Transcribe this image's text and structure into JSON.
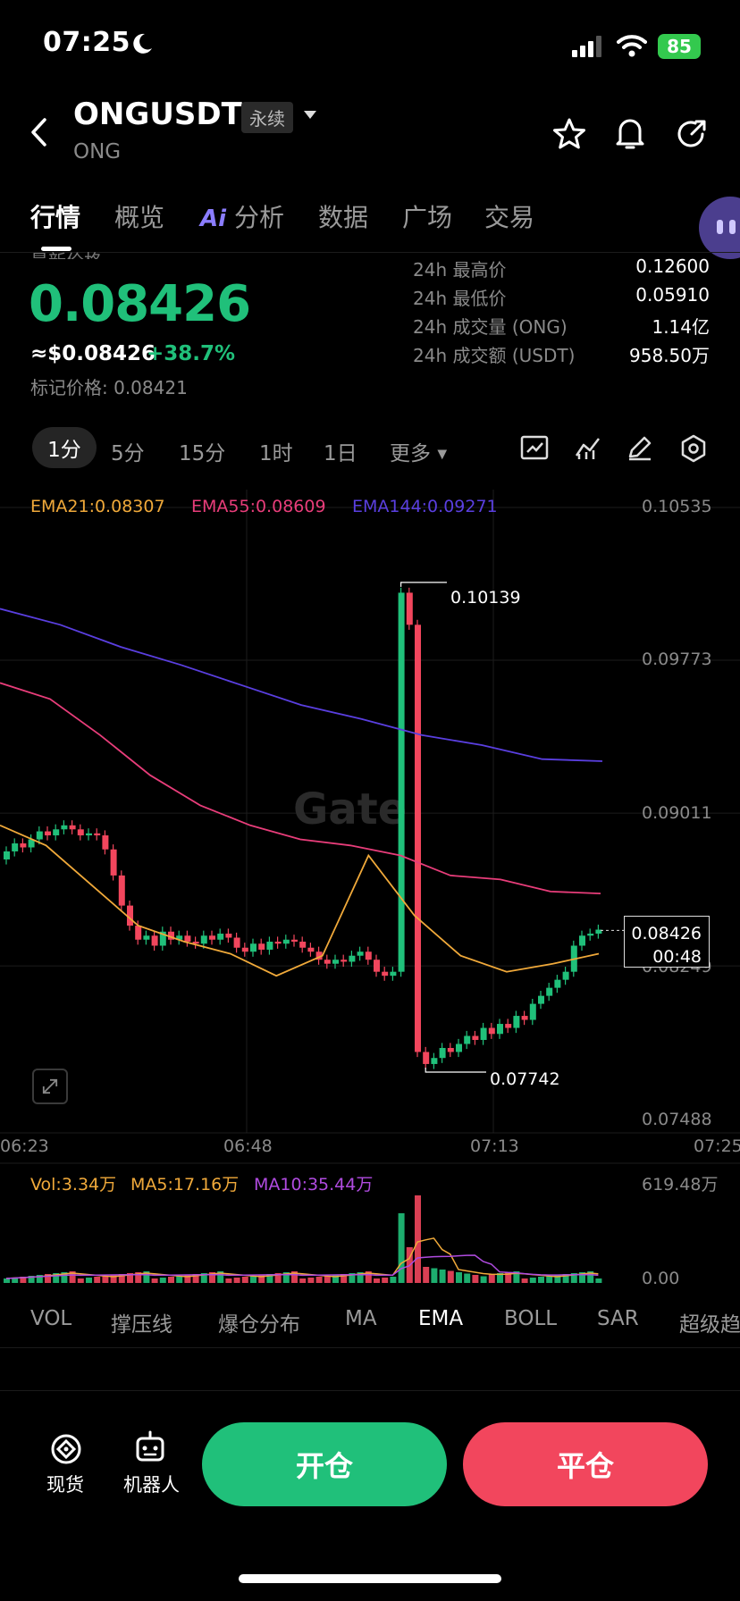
{
  "status_bar": {
    "time": "07:25",
    "battery": "85"
  },
  "header": {
    "pair": "ONGUSDT",
    "contract_tag": "永续",
    "base": "ONG"
  },
  "tabs": [
    {
      "label": "行情"
    },
    {
      "label": "概览"
    },
    {
      "label": "分析",
      "badge": "Ai"
    },
    {
      "label": "数据"
    },
    {
      "label": "广场"
    },
    {
      "label": "交易"
    }
  ],
  "price": {
    "last_label": "最新价格",
    "last": "0.08426",
    "usd": "≈$0.08426",
    "change_pct": "+38.7%",
    "mark": "标记价格: 0.08421"
  },
  "stats": [
    {
      "label": "24h 最高价",
      "value": "0.12600"
    },
    {
      "label": "24h 最低价",
      "value": "0.05910"
    },
    {
      "label": "24h 成交量 (ONG)",
      "value": "1.14亿"
    },
    {
      "label": "24h 成交额 (USDT)",
      "value": "958.50万"
    }
  ],
  "intervals": [
    "1分",
    "5分",
    "15分",
    "1时",
    "1日",
    "更多"
  ],
  "chart": {
    "ema_legend": [
      {
        "label": "EMA21:0.08307",
        "color": "#f0a93a"
      },
      {
        "label": "EMA55:0.08609",
        "color": "#e83d7a"
      },
      {
        "label": "EMA144:0.09271",
        "color": "#5a3fe0"
      }
    ],
    "y_ticks": [
      "0.10535",
      "0.09773",
      "0.09011",
      "0.08249",
      "0.07488"
    ],
    "x_ticks": [
      "06:23",
      "06:48",
      "07:13",
      "07:25"
    ],
    "high_annotation": "0.10139",
    "low_annotation": "0.07742",
    "last_price": "0.08426",
    "countdown": "00:48",
    "watermark": "Gate"
  },
  "volume": {
    "legend": [
      {
        "label": "Vol:3.34万",
        "color": "#f0a93a"
      },
      {
        "label": "MA5:17.16万",
        "color": "#f0a93a"
      },
      {
        "label": "MA10:35.44万",
        "color": "#b04be0"
      }
    ],
    "max_tick": "619.48万",
    "min_tick": "0.00"
  },
  "indicators": [
    "VOL",
    "撑压线",
    "爆仓分布",
    "MA",
    "EMA",
    "BOLL",
    "SAR",
    "超级趋"
  ],
  "footer": {
    "spot": "现货",
    "bot": "机器人",
    "open": "开仓",
    "close": "平仓"
  },
  "chart_data": {
    "type": "candlestick",
    "y_range": [
      0.07488,
      0.10535
    ],
    "series": [
      {
        "name": "EMA21",
        "values": [
          0.0895,
          0.0885,
          0.0865,
          0.0845,
          0.0837,
          0.0831,
          0.082,
          0.083,
          0.088,
          0.085,
          0.083,
          0.0822,
          0.0826,
          0.0831
        ]
      },
      {
        "name": "EMA55",
        "values": [
          0.0966,
          0.0958,
          0.094,
          0.092,
          0.0905,
          0.0895,
          0.0888,
          0.0885,
          0.088,
          0.087,
          0.0868,
          0.0862,
          0.0861
        ]
      },
      {
        "name": "EMA144",
        "values": [
          0.1003,
          0.0995,
          0.0984,
          0.0975,
          0.0965,
          0.0955,
          0.0948,
          0.094,
          0.0935,
          0.0928,
          0.0927
        ]
      }
    ],
    "spike_high": 0.10139,
    "spike_low": 0.07742,
    "last": 0.08426
  }
}
